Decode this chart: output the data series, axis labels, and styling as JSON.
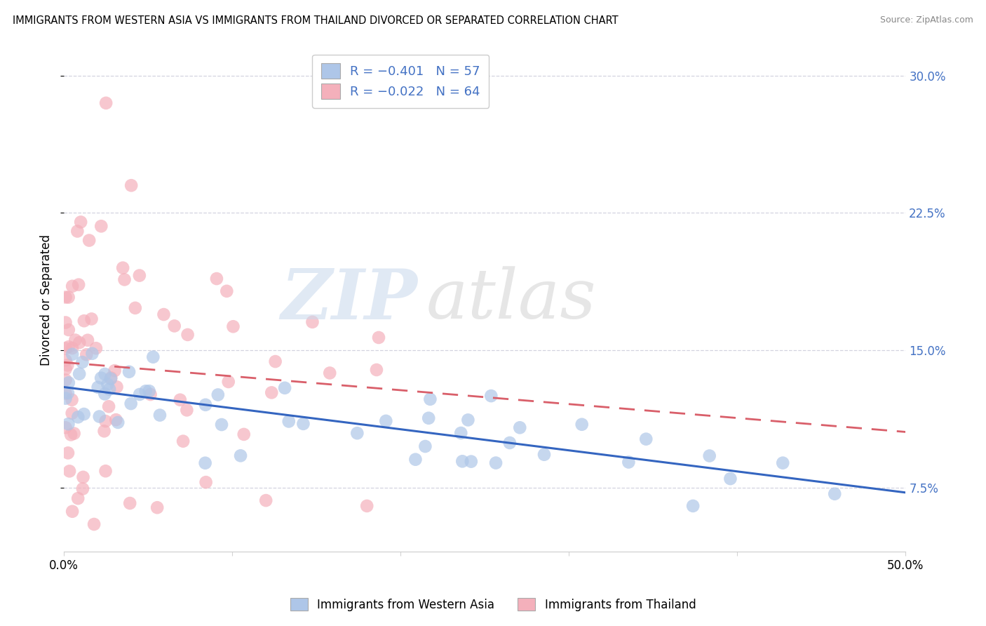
{
  "title": "IMMIGRANTS FROM WESTERN ASIA VS IMMIGRANTS FROM THAILAND DIVORCED OR SEPARATED CORRELATION CHART",
  "source": "Source: ZipAtlas.com",
  "ylabel": "Divorced or Separated",
  "legend_label_blue": "Immigrants from Western Asia",
  "legend_label_pink": "Immigrants from Thailand",
  "xmin": 0.0,
  "xmax": 0.5,
  "ymin": 0.04,
  "ymax": 0.315,
  "ytick_vals": [
    0.075,
    0.15,
    0.225,
    0.3
  ],
  "ytick_labels": [
    "7.5%",
    "15.0%",
    "22.5%",
    "30.0%"
  ],
  "xtick_vals": [
    0.0,
    0.1,
    0.2,
    0.3,
    0.4,
    0.5
  ],
  "xtick_labels": [
    "0.0%",
    "",
    "",
    "",
    "",
    "50.0%"
  ],
  "blue_color": "#aec6e8",
  "pink_color": "#f4b0bb",
  "blue_line_color": "#3465c0",
  "pink_line_color": "#d95f6a",
  "text_color": "#4472c4"
}
